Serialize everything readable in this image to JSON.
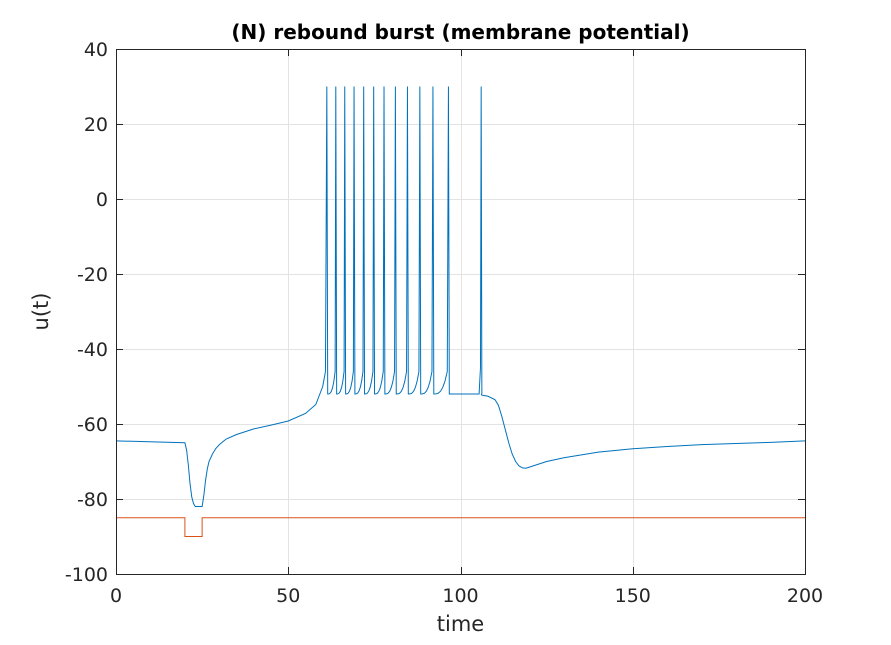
{
  "chart_data": {
    "type": "line",
    "title": "(N) rebound burst (membrane potential)",
    "xlabel": "time",
    "ylabel": "u(t)",
    "xlim": [
      0,
      200
    ],
    "ylim": [
      -100,
      40
    ],
    "xticks": [
      0,
      50,
      100,
      150,
      200
    ],
    "yticks": [
      -100,
      -80,
      -60,
      -40,
      -20,
      0,
      20,
      40
    ],
    "grid": true,
    "legend": "none",
    "colors": {
      "membrane": "#0072BD",
      "input": "#D95319",
      "grid": "#e3e3e3",
      "axis": "#262626"
    },
    "series": [
      {
        "x": [
          0,
          20,
          20.5,
          21,
          21.5,
          22,
          22.5,
          23,
          24,
          25,
          25.5,
          26,
          26.5,
          27,
          28,
          29,
          30,
          32,
          35,
          40,
          45,
          50,
          55,
          58,
          60,
          60.8
        ],
        "y": [
          -64.5,
          -65,
          -67,
          -71,
          -76,
          -79.5,
          -81.2,
          -82,
          -82,
          -82,
          -79,
          -75,
          -72,
          -70,
          -68,
          -66.5,
          -65.5,
          -64,
          -62.8,
          -61.3,
          -60.3,
          -59.2,
          -57.2,
          -54.8,
          -50,
          -46
        ]
      },
      {
        "x": [
          106,
          106.2,
          108,
          110,
          111,
          112,
          113,
          114,
          115,
          116,
          117,
          118,
          119,
          120,
          125,
          130,
          140,
          150,
          160,
          170,
          180,
          190,
          200
        ],
        "y": [
          -52,
          -52.3,
          -52.6,
          -53.5,
          -55,
          -58,
          -61.5,
          -65,
          -68,
          -70,
          -71.2,
          -71.7,
          -71.8,
          -71.5,
          -70,
          -69,
          -67.5,
          -66.6,
          -66,
          -65.5,
          -65.2,
          -64.9,
          -64.5
        ]
      },
      {
        "x": [
          0,
          20,
          20,
          25,
          25,
          200
        ],
        "y": [
          -85,
          -85,
          -90,
          -90,
          -85,
          -85
        ]
      }
    ],
    "spikes": {
      "times": [
        61.2,
        63.8,
        66.4,
        69.1,
        71.9,
        74.8,
        77.8,
        81.1,
        84.6,
        88.2,
        92,
        96.5
      ],
      "peak": 30,
      "reset": -52,
      "final_spike_time": 106
    }
  }
}
